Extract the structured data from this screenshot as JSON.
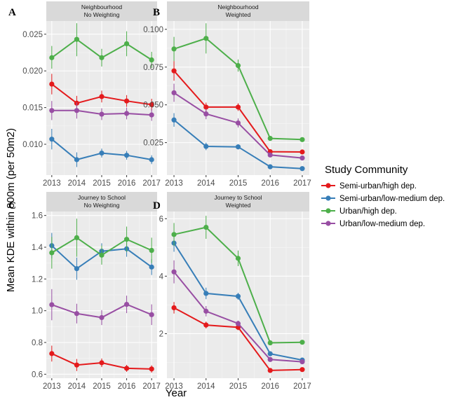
{
  "figure": {
    "ylabel": "Mean KDE within 800m (per 50m2)",
    "xlabel": "Year",
    "legend_title": "Study Community"
  },
  "colors": {
    "Semi-urban/high dep.": "#e41a1c",
    "Semi-urban/low-medium dep.": "#377eb8",
    "Urban/high dep.": "#4daf4a",
    "Urban/low-medium dep.": "#984ea3"
  },
  "chart_data": [
    {
      "type": "line",
      "panel_letter": "A",
      "strip": [
        "Neighbourhood",
        "No Weighting"
      ],
      "x": [
        2013,
        2014,
        2015,
        2016,
        2017
      ],
      "ylim": [
        0.0058,
        0.0268
      ],
      "yticks": [
        0.01,
        0.015,
        0.02,
        0.025
      ],
      "ytick_labels": [
        "0.010",
        "0.015",
        "0.020",
        "0.025"
      ],
      "series": [
        {
          "name": "Semi-urban/high dep.",
          "values": [
            0.0182,
            0.0156,
            0.0165,
            0.0159,
            0.0154
          ],
          "lower": [
            0.0168,
            0.0146,
            0.0157,
            0.0151,
            0.0146
          ],
          "upper": [
            0.0196,
            0.0166,
            0.0173,
            0.0167,
            0.0162
          ]
        },
        {
          "name": "Semi-urban/low-medium dep.",
          "values": [
            0.0107,
            0.0079,
            0.0088,
            0.0085,
            0.0079
          ],
          "lower": [
            0.0093,
            0.0069,
            0.0082,
            0.0079,
            0.0073
          ],
          "upper": [
            0.0121,
            0.0089,
            0.0094,
            0.0091,
            0.0085
          ]
        },
        {
          "name": "Urban/high dep.",
          "values": [
            0.0218,
            0.0243,
            0.0218,
            0.0237,
            0.0215
          ],
          "lower": [
            0.0203,
            0.022,
            0.0206,
            0.022,
            0.0204
          ],
          "upper": [
            0.0234,
            0.0265,
            0.023,
            0.0254,
            0.0226
          ]
        },
        {
          "name": "Urban/low-medium dep.",
          "values": [
            0.0146,
            0.0146,
            0.0141,
            0.0142,
            0.014
          ],
          "lower": [
            0.0133,
            0.0135,
            0.0133,
            0.0134,
            0.0132
          ],
          "upper": [
            0.0159,
            0.0157,
            0.0149,
            0.015,
            0.0148
          ]
        }
      ]
    },
    {
      "type": "line",
      "panel_letter": "B",
      "strip": [
        "Neighbourhood",
        "Weighted"
      ],
      "x": [
        2013,
        2014,
        2015,
        2016,
        2017
      ],
      "ylim": [
        0.0035,
        0.1055
      ],
      "yticks": [
        0.025,
        0.05,
        0.075,
        0.1
      ],
      "ytick_labels": [
        "0.025",
        "0.050",
        "0.075",
        "0.100"
      ],
      "series": [
        {
          "name": "Semi-urban/high dep.",
          "values": [
            0.0725,
            0.0485,
            0.0485,
            0.019,
            0.0188
          ],
          "lower": [
            0.066,
            0.0455,
            0.046,
            0.0178,
            0.0178
          ],
          "upper": [
            0.079,
            0.0515,
            0.051,
            0.0202,
            0.0198
          ]
        },
        {
          "name": "Semi-urban/low-medium dep.",
          "values": [
            0.04,
            0.0225,
            0.0222,
            0.009,
            0.0078
          ],
          "lower": [
            0.0355,
            0.02,
            0.0205,
            0.0082,
            0.007
          ],
          "upper": [
            0.0445,
            0.025,
            0.0239,
            0.0098,
            0.0086
          ]
        },
        {
          "name": "Urban/high dep.",
          "values": [
            0.087,
            0.094,
            0.076,
            0.0278,
            0.027
          ],
          "lower": [
            0.079,
            0.084,
            0.072,
            0.0265,
            0.026
          ],
          "upper": [
            0.095,
            0.104,
            0.08,
            0.0291,
            0.028
          ]
        },
        {
          "name": "Urban/low-medium dep.",
          "values": [
            0.058,
            0.044,
            0.038,
            0.0168,
            0.0148
          ],
          "lower": [
            0.052,
            0.0405,
            0.035,
            0.0156,
            0.0138
          ],
          "upper": [
            0.064,
            0.0475,
            0.041,
            0.018,
            0.0158
          ]
        }
      ]
    },
    {
      "type": "line",
      "panel_letter": "C",
      "strip": [
        "Journey to School",
        "No Weighting"
      ],
      "x": [
        2013,
        2014,
        2015,
        2016,
        2017
      ],
      "ylim": [
        0.575,
        1.625
      ],
      "yticks": [
        0.6,
        0.8,
        1.0,
        1.2,
        1.4,
        1.6
      ],
      "ytick_labels": [
        "0.6",
        "0.8",
        "1.0",
        "1.2",
        "1.4",
        "1.6"
      ],
      "series": [
        {
          "name": "Semi-urban/high dep.",
          "values": [
            0.73,
            0.658,
            0.672,
            0.637,
            0.633
          ],
          "lower": [
            0.68,
            0.62,
            0.645,
            0.615,
            0.61
          ],
          "upper": [
            0.78,
            0.696,
            0.699,
            0.659,
            0.656
          ]
        },
        {
          "name": "Semi-urban/low-medium dep.",
          "values": [
            1.41,
            1.265,
            1.375,
            1.39,
            1.275
          ],
          "lower": [
            1.33,
            1.195,
            1.325,
            1.34,
            1.225
          ],
          "upper": [
            1.49,
            1.335,
            1.425,
            1.44,
            1.325
          ]
        },
        {
          "name": "Urban/high dep.",
          "values": [
            1.365,
            1.46,
            1.35,
            1.45,
            1.38
          ],
          "lower": [
            1.265,
            1.34,
            1.29,
            1.37,
            1.3
          ],
          "upper": [
            1.465,
            1.58,
            1.41,
            1.53,
            1.46
          ]
        },
        {
          "name": "Urban/low-medium dep.",
          "values": [
            1.038,
            0.982,
            0.957,
            1.04,
            0.975
          ],
          "lower": [
            0.94,
            0.92,
            0.91,
            0.985,
            0.91
          ],
          "upper": [
            1.136,
            1.044,
            1.004,
            1.095,
            1.04
          ]
        }
      ]
    },
    {
      "type": "line",
      "panel_letter": "D",
      "strip": [
        "Journey to School",
        "Weighted"
      ],
      "x": [
        2013,
        2014,
        2015,
        2016,
        2017
      ],
      "ylim": [
        0.45,
        6.25
      ],
      "yticks": [
        2,
        4,
        6
      ],
      "ytick_labels": [
        "2",
        "4",
        "6"
      ],
      "series": [
        {
          "name": "Semi-urban/high dep.",
          "values": [
            2.9,
            2.3,
            2.22,
            0.72,
            0.75
          ],
          "lower": [
            2.7,
            2.18,
            2.12,
            0.68,
            0.71
          ],
          "upper": [
            3.1,
            2.42,
            2.32,
            0.76,
            0.79
          ]
        },
        {
          "name": "Semi-urban/low-medium dep.",
          "values": [
            5.15,
            3.4,
            3.3,
            1.3,
            1.08
          ],
          "lower": [
            4.85,
            3.2,
            3.18,
            1.22,
            1.02
          ],
          "upper": [
            5.45,
            3.6,
            3.42,
            1.38,
            1.14
          ]
        },
        {
          "name": "Urban/high dep.",
          "values": [
            5.45,
            5.7,
            4.62,
            1.68,
            1.7
          ],
          "lower": [
            5.05,
            5.3,
            4.35,
            1.62,
            1.65
          ],
          "upper": [
            5.85,
            6.1,
            4.89,
            1.74,
            1.75
          ]
        },
        {
          "name": "Urban/low-medium dep.",
          "values": [
            4.15,
            2.78,
            2.35,
            1.1,
            1.02
          ],
          "lower": [
            3.75,
            2.6,
            2.25,
            1.06,
            0.98
          ],
          "upper": [
            4.55,
            2.96,
            2.45,
            1.14,
            1.06
          ]
        }
      ]
    }
  ],
  "legend": {
    "items": [
      {
        "label": "Semi-urban/high dep.",
        "color": "#e41a1c"
      },
      {
        "label": "Semi-urban/low-medium dep.",
        "color": "#377eb8"
      },
      {
        "label": "Urban/high dep.",
        "color": "#4daf4a"
      },
      {
        "label": "Urban/low-medium dep.",
        "color": "#984ea3"
      }
    ]
  }
}
